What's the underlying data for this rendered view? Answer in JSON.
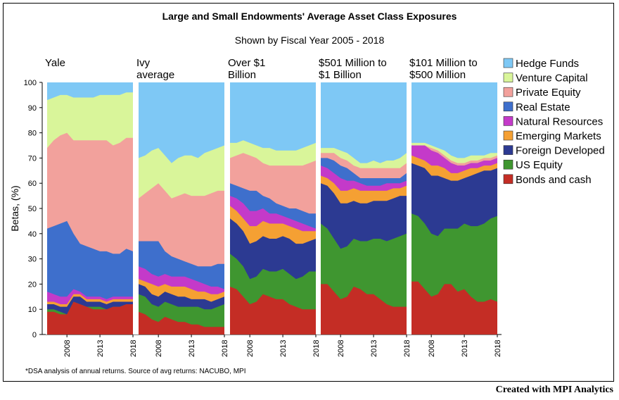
{
  "credit": "Created with MPI Analytics",
  "chart_data": {
    "type": "area",
    "title": "Large and Small Endowments' Average Asset Class Exposures",
    "subtitle": "Shown by Fiscal Year 2005 - 2018",
    "ylabel": "Betas, (%)",
    "ylim": [
      0,
      100
    ],
    "yticks": [
      0,
      10,
      20,
      30,
      40,
      50,
      60,
      70,
      80,
      90,
      100
    ],
    "xticks": [
      "2008",
      "2013",
      "2018"
    ],
    "footnote": "*DSA analysis of annual returns. Source of avg returns: NACUBO, MPI",
    "legend_position": "right",
    "x": [
      2005,
      2006,
      2007,
      2008,
      2009,
      2010,
      2011,
      2012,
      2013,
      2014,
      2015,
      2016,
      2017,
      2018
    ],
    "series_order_bottom_to_top": [
      "Bonds and cash",
      "US Equity",
      "Foreign Developed",
      "Emerging Markets",
      "Natural Resources",
      "Real Estate",
      "Private Equity",
      "Venture Capital",
      "Hedge Funds"
    ],
    "legend": [
      {
        "name": "Hedge Funds",
        "color": "#7ec8f5"
      },
      {
        "name": "Venture Capital",
        "color": "#d9f59a"
      },
      {
        "name": "Private Equity",
        "color": "#f2a19c"
      },
      {
        "name": "Real Estate",
        "color": "#3e6fcc"
      },
      {
        "name": "Natural Resources",
        "color": "#c43ac9"
      },
      {
        "name": "Emerging Markets",
        "color": "#f5a033"
      },
      {
        "name": "Foreign Developed",
        "color": "#2c3a92"
      },
      {
        "name": "US Equity",
        "color": "#3f9630"
      },
      {
        "name": "Bonds and cash",
        "color": "#c42d25"
      }
    ],
    "panels": [
      {
        "title_lines": [
          "Yale"
        ],
        "cumulative_tops": {
          "Bonds and cash": [
            9,
            9,
            8,
            8,
            13,
            12,
            11,
            10,
            10,
            10,
            11,
            11,
            12,
            12
          ],
          "US Equity": [
            10,
            10,
            9,
            8,
            13,
            12,
            11,
            11,
            11,
            10,
            11,
            11,
            12,
            12
          ],
          "Foreign Developed": [
            12,
            12,
            11,
            11,
            15,
            15,
            13,
            13,
            13,
            12,
            13,
            13,
            13,
            13
          ],
          "Emerging Markets": [
            13,
            13,
            12,
            12,
            16,
            16,
            14,
            14,
            14,
            13,
            14,
            14,
            14,
            14
          ],
          "Natural Resources": [
            17,
            16,
            15,
            15,
            18,
            17,
            15,
            15,
            15,
            14,
            15,
            15,
            15,
            15
          ],
          "Real Estate": [
            42,
            43,
            44,
            45,
            40,
            36,
            35,
            34,
            33,
            33,
            32,
            32,
            34,
            33
          ],
          "Private Equity": [
            74,
            77,
            79,
            80,
            77,
            77,
            77,
            77,
            77,
            77,
            75,
            76,
            78,
            78
          ],
          "Venture Capital": [
            93,
            94,
            95,
            95,
            94,
            94,
            94,
            94,
            95,
            95,
            95,
            95,
            96,
            96
          ],
          "Hedge Funds": [
            100,
            100,
            100,
            100,
            100,
            100,
            100,
            100,
            100,
            100,
            100,
            100,
            100,
            100
          ]
        }
      },
      {
        "title_lines": [
          "Ivy",
          "average"
        ],
        "cumulative_tops": {
          "Bonds and cash": [
            9,
            8,
            6,
            5,
            7,
            6,
            5,
            5,
            4,
            4,
            3,
            3,
            3,
            3
          ],
          "US Equity": [
            16,
            15,
            12,
            11,
            13,
            12,
            11,
            11,
            11,
            11,
            10,
            10,
            11,
            12
          ],
          "Foreign Developed": [
            20,
            19,
            16,
            15,
            17,
            16,
            15,
            15,
            14,
            14,
            14,
            13,
            14,
            15
          ],
          "Emerging Markets": [
            22,
            21,
            20,
            19,
            20,
            19,
            19,
            19,
            18,
            17,
            17,
            16,
            16,
            17
          ],
          "Natural Resources": [
            27,
            26,
            24,
            23,
            24,
            23,
            23,
            23,
            22,
            21,
            20,
            19,
            19,
            18
          ],
          "Real Estate": [
            37,
            37,
            37,
            37,
            33,
            31,
            30,
            29,
            28,
            27,
            27,
            27,
            28,
            28
          ],
          "Private Equity": [
            54,
            56,
            58,
            60,
            57,
            54,
            55,
            56,
            55,
            55,
            55,
            56,
            57,
            57
          ],
          "Venture Capital": [
            70,
            71,
            73,
            74,
            71,
            68,
            70,
            71,
            71,
            70,
            72,
            73,
            74,
            75
          ],
          "Hedge Funds": [
            100,
            100,
            100,
            100,
            100,
            100,
            100,
            100,
            100,
            100,
            100,
            100,
            100,
            100
          ]
        }
      },
      {
        "title_lines": [
          "Over $1",
          "Billion"
        ],
        "cumulative_tops": {
          "Bonds and cash": [
            19,
            18,
            15,
            12,
            13,
            16,
            15,
            14,
            14,
            12,
            11,
            10,
            10,
            10
          ],
          "US Equity": [
            32,
            30,
            27,
            22,
            23,
            26,
            25,
            25,
            26,
            24,
            22,
            23,
            25,
            25
          ],
          "Foreign Developed": [
            46,
            44,
            41,
            36,
            37,
            39,
            38,
            38,
            39,
            38,
            36,
            36,
            37,
            38
          ],
          "Emerging Markets": [
            51,
            49,
            46,
            43,
            43,
            45,
            44,
            44,
            44,
            43,
            42,
            41,
            41,
            41
          ],
          "Natural Resources": [
            55,
            54,
            52,
            49,
            49,
            50,
            48,
            48,
            47,
            46,
            45,
            44,
            43,
            42
          ],
          "Real Estate": [
            60,
            59,
            58,
            57,
            57,
            55,
            54,
            52,
            51,
            50,
            50,
            49,
            48,
            48
          ],
          "Private Equity": [
            70,
            71,
            72,
            71,
            70,
            68,
            67,
            67,
            67,
            67,
            67,
            67,
            68,
            69
          ],
          "Venture Capital": [
            76,
            76,
            77,
            76,
            75,
            74,
            74,
            73,
            73,
            73,
            73,
            74,
            75,
            76
          ],
          "Hedge Funds": [
            100,
            100,
            100,
            100,
            100,
            100,
            100,
            100,
            100,
            100,
            100,
            100,
            100,
            100
          ]
        }
      },
      {
        "title_lines": [
          "$501 Million to",
          "$1 Billion"
        ],
        "cumulative_tops": {
          "Bonds and cash": [
            20,
            20,
            17,
            14,
            15,
            19,
            18,
            16,
            16,
            14,
            12,
            11,
            11,
            11
          ],
          "US Equity": [
            44,
            42,
            38,
            34,
            35,
            38,
            37,
            37,
            38,
            38,
            37,
            38,
            39,
            40
          ],
          "Foreign Developed": [
            60,
            59,
            56,
            52,
            52,
            53,
            52,
            52,
            53,
            53,
            53,
            54,
            55,
            55
          ],
          "Emerging Markets": [
            63,
            62,
            60,
            57,
            57,
            58,
            57,
            57,
            57,
            57,
            57,
            58,
            58,
            59
          ],
          "Natural Resources": [
            67,
            66,
            64,
            62,
            61,
            61,
            60,
            59,
            59,
            59,
            60,
            60,
            60,
            61
          ],
          "Real Estate": [
            70,
            70,
            69,
            67,
            66,
            64,
            62,
            62,
            62,
            62,
            62,
            62,
            62,
            64
          ],
          "Private Equity": [
            72,
            72,
            72,
            70,
            69,
            67,
            66,
            66,
            66,
            66,
            66,
            66,
            66,
            68
          ],
          "Venture Capital": [
            74,
            74,
            74,
            73,
            72,
            70,
            68,
            68,
            69,
            68,
            69,
            69,
            70,
            72
          ],
          "Hedge Funds": [
            100,
            100,
            100,
            100,
            100,
            100,
            100,
            100,
            100,
            100,
            100,
            100,
            100,
            100
          ]
        }
      },
      {
        "title_lines": [
          "$101 Million to",
          "$500 Million"
        ],
        "cumulative_tops": {
          "Bonds and cash": [
            21,
            21,
            18,
            15,
            16,
            20,
            20,
            17,
            18,
            15,
            13,
            13,
            14,
            13
          ],
          "US Equity": [
            48,
            47,
            44,
            40,
            39,
            42,
            42,
            42,
            44,
            43,
            43,
            44,
            46,
            47
          ],
          "Foreign Developed": [
            68,
            67,
            66,
            63,
            63,
            62,
            61,
            61,
            62,
            63,
            64,
            65,
            65,
            66
          ],
          "Emerging Markets": [
            71,
            70,
            69,
            67,
            67,
            66,
            64,
            64,
            65,
            66,
            66,
            67,
            67,
            68
          ],
          "Natural Resources": [
            75,
            75,
            75,
            73,
            72,
            70,
            68,
            67,
            67,
            68,
            68,
            69,
            69,
            70
          ],
          "Real Estate": [
            75,
            75,
            75,
            73,
            72,
            70,
            68,
            67,
            67,
            68,
            68,
            69,
            69,
            70
          ],
          "Private Equity": [
            75,
            75,
            75,
            74,
            73,
            71,
            69,
            68,
            68,
            69,
            69,
            70,
            70,
            71
          ],
          "Venture Capital": [
            76,
            76,
            76,
            75,
            74,
            73,
            71,
            70,
            70,
            71,
            71,
            71,
            72,
            72
          ],
          "Hedge Funds": [
            100,
            100,
            100,
            100,
            100,
            100,
            100,
            100,
            100,
            100,
            100,
            100,
            100,
            100
          ]
        }
      }
    ]
  }
}
